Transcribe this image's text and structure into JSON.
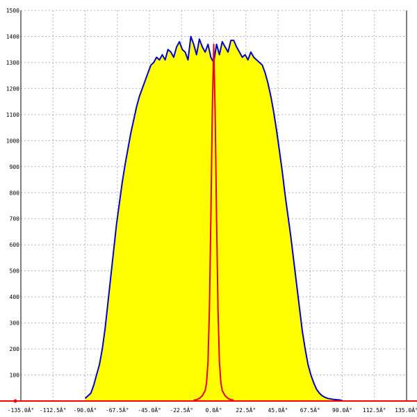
{
  "chart_data": {
    "type": "area",
    "title": "",
    "xlabel": "",
    "ylabel": "",
    "xlim": [
      -135,
      135
    ],
    "ylim": [
      0,
      1500
    ],
    "x_tick_values": [
      -135,
      -112.5,
      -90,
      -67.5,
      -45,
      -22.5,
      0,
      22.5,
      45,
      67.5,
      90,
      112.5,
      135
    ],
    "x_tick_labels": [
      "-135.0Â°",
      "-112.5Â°",
      "-90.0Â°",
      "-67.5Â°",
      "-45.0Â°",
      "-22.5Â°",
      "0.0Â°",
      "22.5Â°",
      "45.0Â°",
      "67.5Â°",
      "90.0Â°",
      "112.5Â°",
      "135.0Â°"
    ],
    "y_ticks": [
      100,
      200,
      300,
      400,
      500,
      600,
      700,
      800,
      900,
      1000,
      1100,
      1200,
      1300,
      1400,
      1500
    ],
    "grid": true,
    "colors": {
      "fill": "#ffff00",
      "wide_line": "#0000cc",
      "narrow_line": "#e8001c",
      "baseline": "#ff0000",
      "grid": "#b4b4b4"
    },
    "series": [
      {
        "x": [
          -90,
          -88,
          -86,
          -84,
          -82,
          -80,
          -78,
          -76,
          -74,
          -72,
          -70,
          -68,
          -66,
          -64,
          -62,
          -60,
          -58,
          -56,
          -54,
          -52,
          -50,
          -48,
          -46,
          -44,
          -42,
          -40,
          -38,
          -36,
          -34,
          -32,
          -30,
          -28,
          -26,
          -24,
          -22,
          -20,
          -18,
          -16,
          -14,
          -12,
          -10,
          -8,
          -6,
          -4,
          -2,
          0,
          2,
          4,
          6,
          8,
          10,
          12,
          14,
          16,
          18,
          20,
          22,
          24,
          26,
          28,
          30,
          32,
          34,
          36,
          38,
          40,
          42,
          44,
          46,
          48,
          50,
          52,
          54,
          56,
          58,
          60,
          62,
          64,
          66,
          68,
          70,
          72,
          74,
          76,
          78,
          80,
          82,
          84,
          86,
          88,
          90
        ],
        "values": [
          10,
          20,
          30,
          60,
          100,
          140,
          200,
          280,
          380,
          480,
          580,
          680,
          760,
          840,
          910,
          970,
          1030,
          1080,
          1130,
          1170,
          1200,
          1230,
          1260,
          1290,
          1300,
          1320,
          1310,
          1330,
          1310,
          1350,
          1340,
          1320,
          1360,
          1380,
          1350,
          1340,
          1310,
          1400,
          1370,
          1330,
          1390,
          1360,
          1340,
          1370,
          1320,
          1300,
          1370,
          1330,
          1380,
          1360,
          1340,
          1385,
          1385,
          1360,
          1340,
          1320,
          1330,
          1310,
          1340,
          1320,
          1310,
          1300,
          1290,
          1260,
          1220,
          1170,
          1110,
          1040,
          960,
          880,
          790,
          710,
          630,
          540,
          450,
          360,
          270,
          200,
          140,
          100,
          70,
          45,
          30,
          20,
          14,
          10,
          8,
          6,
          5,
          4,
          2
        ]
      },
      {
        "x": [
          -14,
          -12,
          -10,
          -8,
          -6,
          -5,
          -4,
          -3,
          -2,
          -1,
          0,
          1,
          2,
          3,
          4,
          5,
          6,
          8,
          10,
          12,
          14
        ],
        "values": [
          3,
          5,
          10,
          20,
          40,
          70,
          150,
          350,
          700,
          1100,
          1370,
          1100,
          700,
          350,
          150,
          70,
          40,
          20,
          10,
          5,
          3
        ]
      }
    ]
  }
}
